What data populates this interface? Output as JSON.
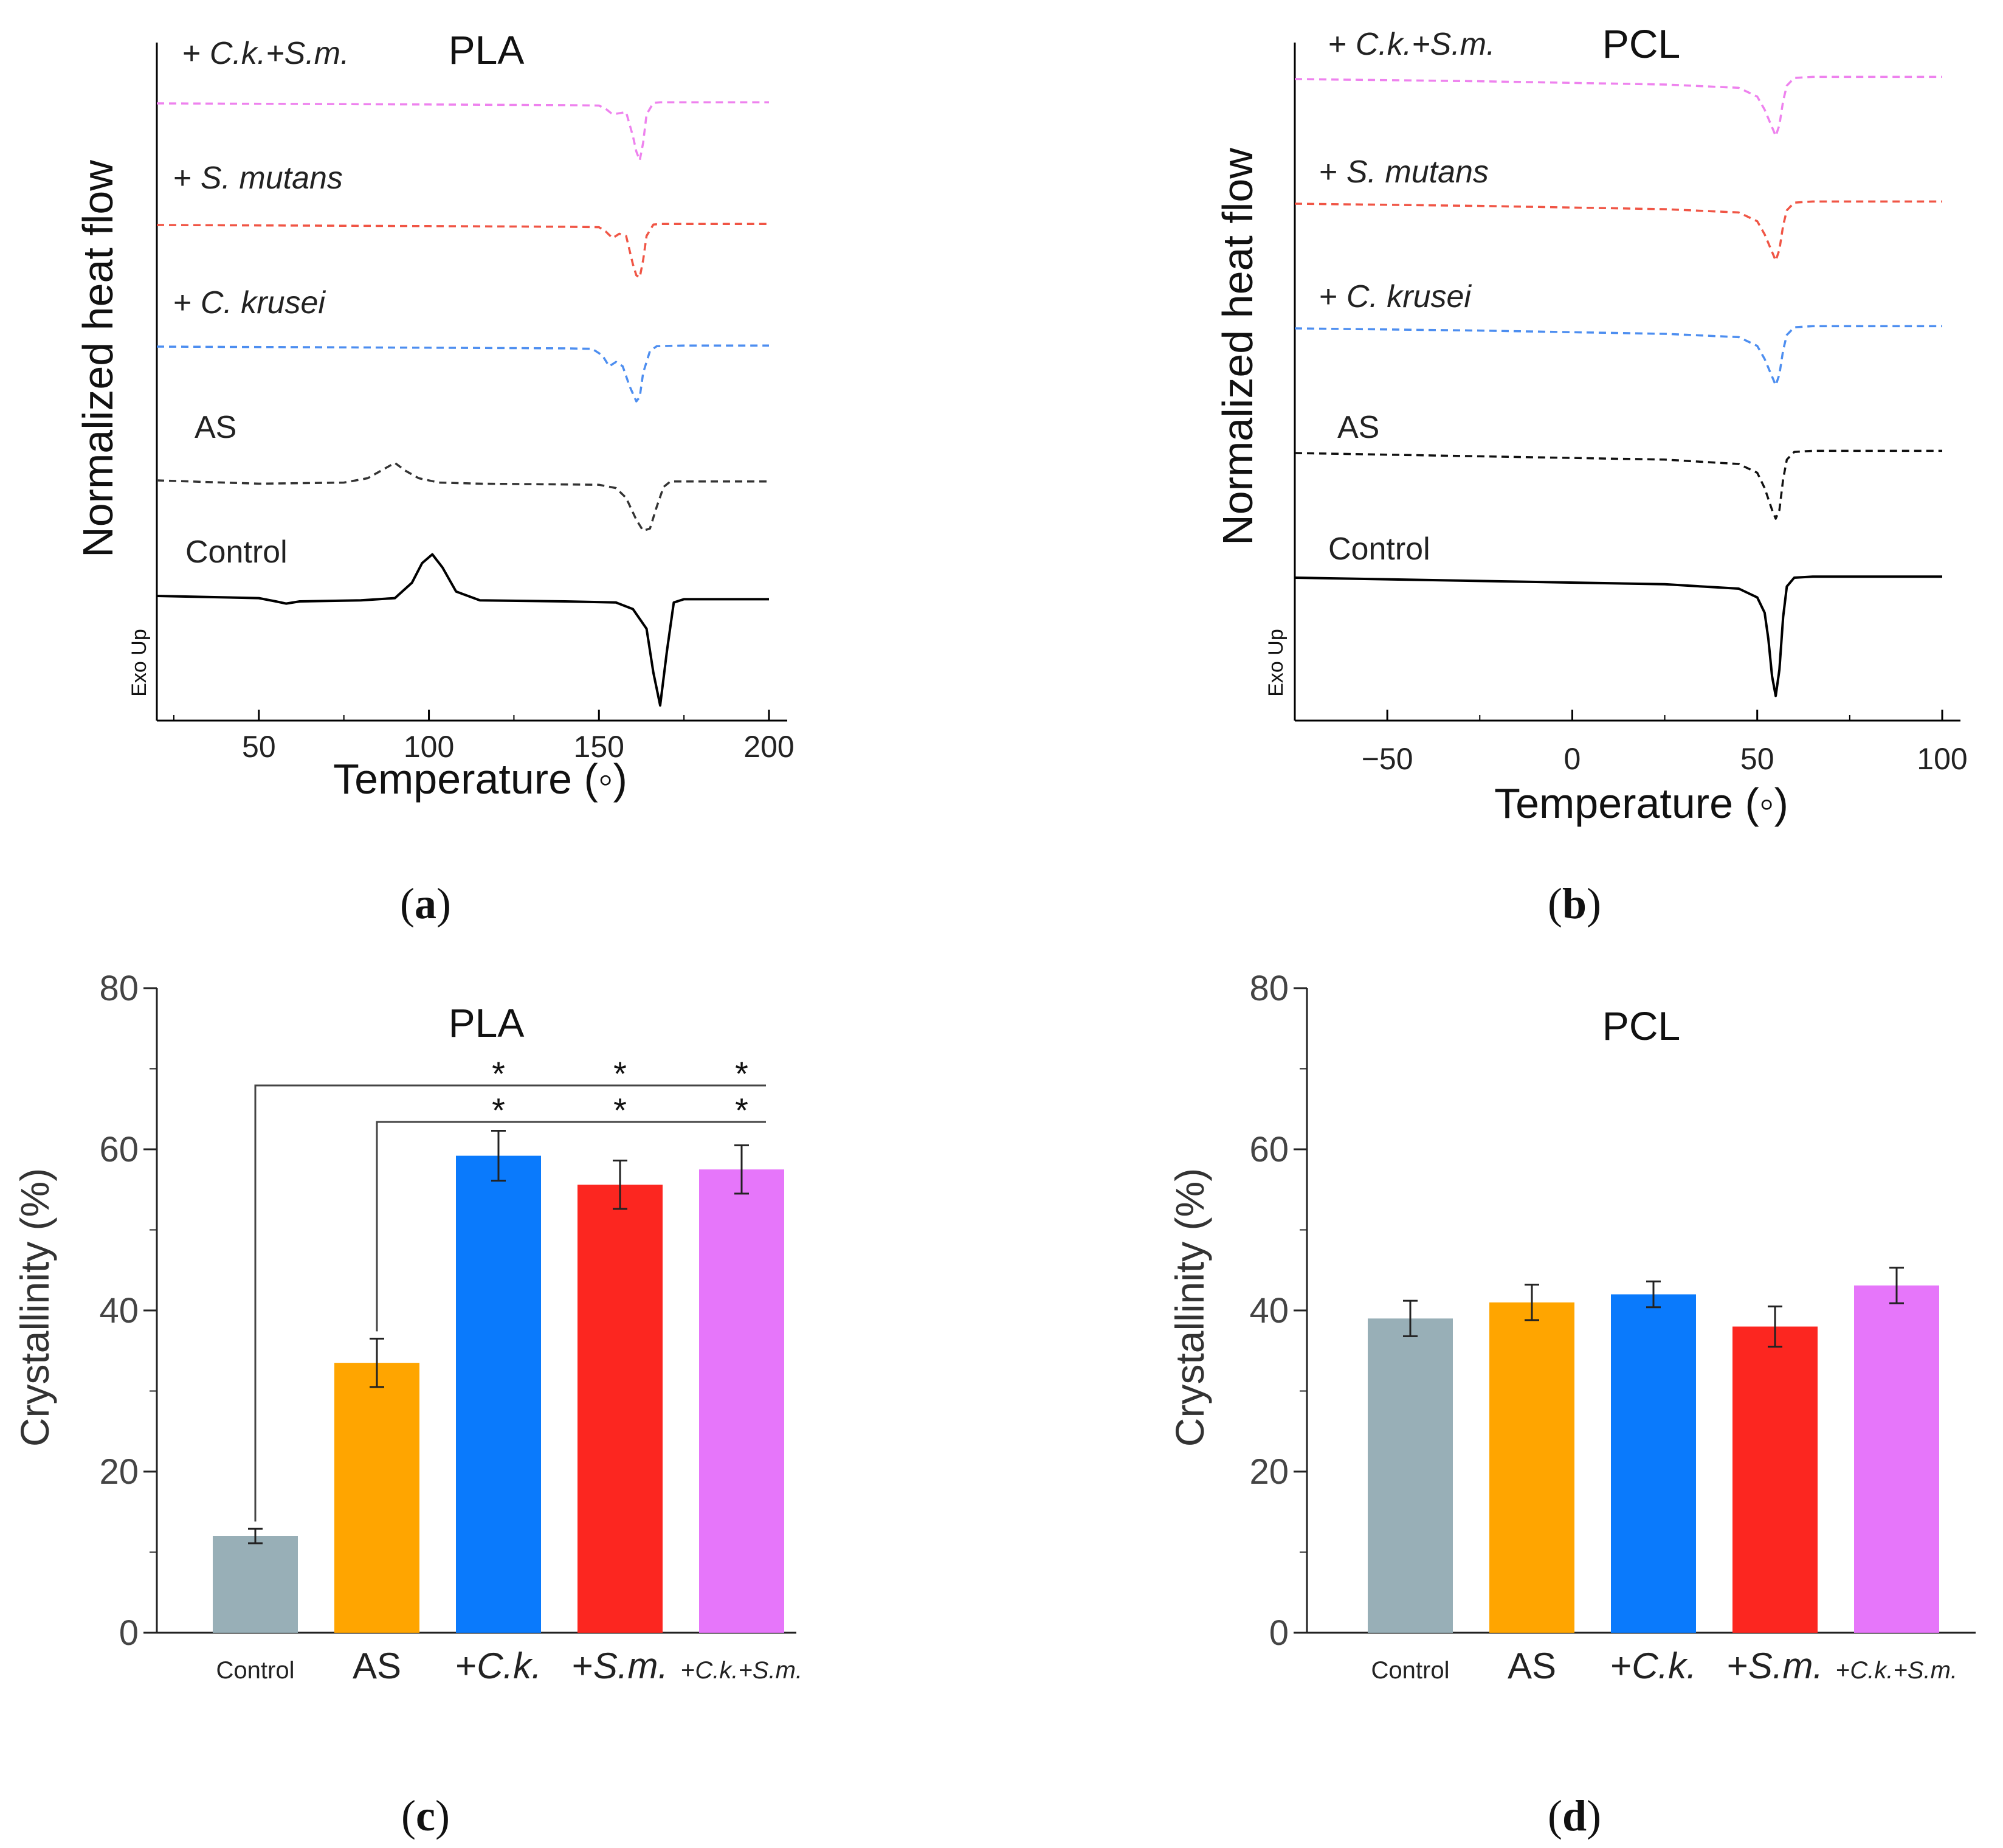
{
  "figure": {
    "panels": [
      {
        "id": "a",
        "label": "a"
      },
      {
        "id": "b",
        "label": "b"
      },
      {
        "id": "c",
        "label": "c"
      },
      {
        "id": "d",
        "label": "d"
      }
    ]
  },
  "chart_data": [
    {
      "id": "a",
      "type": "line",
      "title": "PLA",
      "xlabel": "Temperature (◦)",
      "ylabel": "Normalized heat flow",
      "exo_label": "Exo Up",
      "xlim": [
        20,
        200
      ],
      "xticks": [
        "50",
        "100",
        "150",
        "200"
      ],
      "series": [
        {
          "name": "+ C.k.+S.m.",
          "color": "#ee82ee",
          "dashed": true,
          "x": [
            20,
            100,
            140,
            150,
            152,
            154,
            156,
            158,
            160,
            161,
            162,
            163,
            164,
            166,
            168,
            175,
            200
          ],
          "y": [
            0,
            -0.05,
            -0.08,
            -0.1,
            -0.25,
            -0.5,
            -0.45,
            -0.4,
            -1.5,
            -2.2,
            -2.6,
            -1.8,
            -0.5,
            0.02,
            0.05,
            0.05,
            0.05
          ]
        },
        {
          "name": "+ S. mutans",
          "color": "#f05545",
          "dashed": true,
          "x": [
            20,
            100,
            140,
            150,
            152,
            154,
            156,
            158,
            160,
            161,
            162,
            163,
            164,
            166,
            168,
            175,
            200
          ],
          "y": [
            0,
            -0.05,
            -0.08,
            -0.1,
            -0.3,
            -0.6,
            -0.4,
            -0.5,
            -1.8,
            -2.3,
            -2.4,
            -1.6,
            -0.5,
            0.02,
            0.05,
            0.05,
            0.05
          ]
        },
        {
          "name": "+ C. krusei",
          "color": "#4d8ef0",
          "dashed": true,
          "x": [
            20,
            100,
            140,
            148,
            151,
            153,
            155,
            157,
            159,
            161,
            162,
            163,
            165,
            167,
            175,
            200
          ],
          "y": [
            0,
            -0.05,
            -0.08,
            -0.1,
            -0.4,
            -0.9,
            -0.7,
            -0.9,
            -1.8,
            -2.5,
            -2.3,
            -1.2,
            -0.2,
            0.02,
            0.05,
            0.05
          ]
        },
        {
          "name": "AS",
          "color": "#333333",
          "dashed": true,
          "x": [
            20,
            50,
            75,
            82,
            86,
            90,
            93,
            97,
            103,
            115,
            150,
            155,
            158,
            161,
            163,
            165,
            167,
            169,
            171,
            175,
            200
          ],
          "y": [
            0,
            -0.15,
            -0.1,
            0.1,
            0.45,
            0.8,
            0.45,
            0.1,
            -0.1,
            -0.15,
            -0.2,
            -0.35,
            -0.8,
            -1.8,
            -2.3,
            -2.2,
            -1.2,
            -0.3,
            -0.05,
            -0.05,
            -0.05
          ]
        },
        {
          "name": "Control",
          "color": "#000000",
          "dashed": false,
          "x": [
            20,
            50,
            55,
            58,
            62,
            80,
            90,
            95,
            98,
            101,
            104,
            108,
            115,
            140,
            155,
            160,
            164,
            166,
            168,
            170,
            172,
            175,
            200
          ],
          "y": [
            0,
            -0.1,
            -0.25,
            -0.35,
            -0.25,
            -0.2,
            -0.1,
            0.6,
            1.5,
            1.9,
            1.3,
            0.2,
            -0.2,
            -0.25,
            -0.3,
            -0.6,
            -1.5,
            -3.5,
            -5.0,
            -2.5,
            -0.3,
            -0.15,
            -0.15
          ]
        }
      ]
    },
    {
      "id": "b",
      "type": "line",
      "title": "PCL",
      "xlabel": "Temperature (◦)",
      "ylabel": "Normalized heat flow",
      "exo_label": "Exo Up",
      "xlim": [
        -75,
        100
      ],
      "xticks": [
        "−50",
        "0",
        "50",
        "100"
      ],
      "series": [
        {
          "name": "+ C.k.+S.m.",
          "color": "#ee82ee",
          "dashed": true,
          "x": [
            -75,
            -25,
            25,
            45,
            50,
            52,
            54,
            55,
            56,
            57,
            58,
            60,
            65,
            100
          ],
          "y": [
            0,
            -0.1,
            -0.25,
            -0.4,
            -0.8,
            -1.4,
            -2.2,
            -2.6,
            -2.1,
            -1.0,
            -0.3,
            0.05,
            0.1,
            0.1
          ]
        },
        {
          "name": "+ S. mutans",
          "color": "#f05545",
          "dashed": true,
          "x": [
            -75,
            -25,
            25,
            45,
            50,
            52,
            54,
            55,
            56,
            57,
            58,
            60,
            65,
            100
          ],
          "y": [
            0,
            -0.1,
            -0.25,
            -0.4,
            -0.8,
            -1.4,
            -2.2,
            -2.6,
            -2.1,
            -1.0,
            -0.3,
            0.05,
            0.1,
            0.1
          ]
        },
        {
          "name": "+ C. krusei",
          "color": "#4d8ef0",
          "dashed": true,
          "x": [
            -75,
            -25,
            25,
            45,
            50,
            52,
            54,
            55,
            56,
            57,
            58,
            60,
            65,
            100
          ],
          "y": [
            0,
            -0.1,
            -0.25,
            -0.4,
            -0.8,
            -1.4,
            -2.2,
            -2.6,
            -2.1,
            -1.0,
            -0.3,
            0.05,
            0.1,
            0.1
          ]
        },
        {
          "name": "AS",
          "color": "#111111",
          "dashed": true,
          "x": [
            -75,
            -25,
            25,
            45,
            50,
            52,
            54,
            55,
            56,
            57,
            58,
            60,
            65,
            100
          ],
          "y": [
            0,
            -0.15,
            -0.3,
            -0.5,
            -0.9,
            -1.6,
            -2.6,
            -3.0,
            -2.6,
            -1.2,
            -0.3,
            0.05,
            0.1,
            0.1
          ]
        },
        {
          "name": "Control",
          "color": "#000000",
          "dashed": false,
          "x": [
            -75,
            -25,
            25,
            45,
            50,
            52,
            53,
            54,
            55,
            56,
            57,
            58,
            60,
            65,
            100
          ],
          "y": [
            0,
            -0.15,
            -0.3,
            -0.5,
            -0.9,
            -1.6,
            -2.8,
            -4.5,
            -5.4,
            -4.2,
            -1.8,
            -0.4,
            0.0,
            0.05,
            0.05
          ]
        }
      ]
    },
    {
      "id": "c",
      "type": "bar",
      "title": "PLA",
      "xlabel": "",
      "ylabel": "Crystallinity (%)",
      "ylim": [
        0,
        80
      ],
      "yticks": [
        "0",
        "20",
        "40",
        "60",
        "80"
      ],
      "categories": [
        "Control",
        "AS",
        "+C.k.",
        "+S.m.",
        "+C.k.+S.m."
      ],
      "values": [
        12,
        33.5,
        59.2,
        55.6,
        57.5
      ],
      "errors": [
        0.9,
        3.0,
        3.1,
        3.0,
        3.0
      ],
      "colors": [
        "#98afb7",
        "#ffa500",
        "#0a7afc",
        "#fc2620",
        "#e676fa"
      ],
      "significance": {
        "marker": "*",
        "comparisons": [
          {
            "from": "Control",
            "to": [
              "+C.k.",
              "+S.m.",
              "+C.k.+S.m."
            ]
          },
          {
            "from": "AS",
            "to": [
              "+C.k.",
              "+S.m.",
              "+C.k.+S.m."
            ]
          }
        ]
      }
    },
    {
      "id": "d",
      "type": "bar",
      "title": "PCL",
      "xlabel": "",
      "ylabel": "Crystallinity (%)",
      "ylim": [
        0,
        80
      ],
      "yticks": [
        "0",
        "20",
        "40",
        "60",
        "80"
      ],
      "categories": [
        "Control",
        "AS",
        "+C.k.",
        "+S.m.",
        "+C.k.+S.m."
      ],
      "values": [
        39.0,
        41.0,
        42.0,
        38.0,
        43.1
      ],
      "errors": [
        2.2,
        2.2,
        1.6,
        2.5,
        2.2
      ],
      "colors": [
        "#98afb7",
        "#ffa500",
        "#0a7afc",
        "#fc2620",
        "#e676fa"
      ]
    }
  ]
}
